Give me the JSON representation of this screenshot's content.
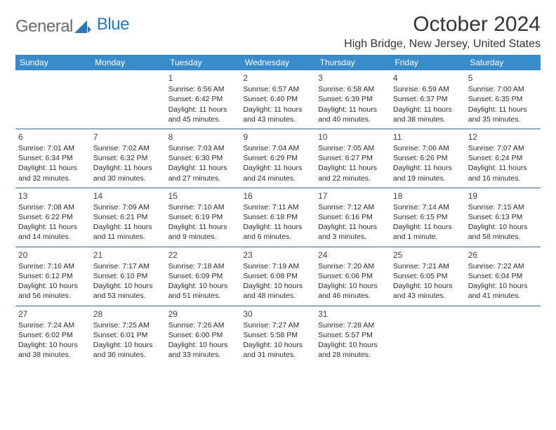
{
  "logo": {
    "text1": "General",
    "text2": "Blue"
  },
  "title": "October 2024",
  "subtitle": "High Bridge, New Jersey, United States",
  "header_bg": "#3a8bc9",
  "row_border": "#3a6a9a",
  "weekdays": [
    "Sunday",
    "Monday",
    "Tuesday",
    "Wednesday",
    "Thursday",
    "Friday",
    "Saturday"
  ],
  "weeks": [
    [
      {
        "day": "",
        "sunrise": "",
        "sunset": "",
        "dl1": "",
        "dl2": ""
      },
      {
        "day": "",
        "sunrise": "",
        "sunset": "",
        "dl1": "",
        "dl2": ""
      },
      {
        "day": "1",
        "sunrise": "Sunrise: 6:56 AM",
        "sunset": "Sunset: 6:42 PM",
        "dl1": "Daylight: 11 hours",
        "dl2": "and 45 minutes."
      },
      {
        "day": "2",
        "sunrise": "Sunrise: 6:57 AM",
        "sunset": "Sunset: 6:40 PM",
        "dl1": "Daylight: 11 hours",
        "dl2": "and 43 minutes."
      },
      {
        "day": "3",
        "sunrise": "Sunrise: 6:58 AM",
        "sunset": "Sunset: 6:39 PM",
        "dl1": "Daylight: 11 hours",
        "dl2": "and 40 minutes."
      },
      {
        "day": "4",
        "sunrise": "Sunrise: 6:59 AM",
        "sunset": "Sunset: 6:37 PM",
        "dl1": "Daylight: 11 hours",
        "dl2": "and 38 minutes."
      },
      {
        "day": "5",
        "sunrise": "Sunrise: 7:00 AM",
        "sunset": "Sunset: 6:35 PM",
        "dl1": "Daylight: 11 hours",
        "dl2": "and 35 minutes."
      }
    ],
    [
      {
        "day": "6",
        "sunrise": "Sunrise: 7:01 AM",
        "sunset": "Sunset: 6:34 PM",
        "dl1": "Daylight: 11 hours",
        "dl2": "and 32 minutes."
      },
      {
        "day": "7",
        "sunrise": "Sunrise: 7:02 AM",
        "sunset": "Sunset: 6:32 PM",
        "dl1": "Daylight: 11 hours",
        "dl2": "and 30 minutes."
      },
      {
        "day": "8",
        "sunrise": "Sunrise: 7:03 AM",
        "sunset": "Sunset: 6:30 PM",
        "dl1": "Daylight: 11 hours",
        "dl2": "and 27 minutes."
      },
      {
        "day": "9",
        "sunrise": "Sunrise: 7:04 AM",
        "sunset": "Sunset: 6:29 PM",
        "dl1": "Daylight: 11 hours",
        "dl2": "and 24 minutes."
      },
      {
        "day": "10",
        "sunrise": "Sunrise: 7:05 AM",
        "sunset": "Sunset: 6:27 PM",
        "dl1": "Daylight: 11 hours",
        "dl2": "and 22 minutes."
      },
      {
        "day": "11",
        "sunrise": "Sunrise: 7:06 AM",
        "sunset": "Sunset: 6:26 PM",
        "dl1": "Daylight: 11 hours",
        "dl2": "and 19 minutes."
      },
      {
        "day": "12",
        "sunrise": "Sunrise: 7:07 AM",
        "sunset": "Sunset: 6:24 PM",
        "dl1": "Daylight: 11 hours",
        "dl2": "and 16 minutes."
      }
    ],
    [
      {
        "day": "13",
        "sunrise": "Sunrise: 7:08 AM",
        "sunset": "Sunset: 6:22 PM",
        "dl1": "Daylight: 11 hours",
        "dl2": "and 14 minutes."
      },
      {
        "day": "14",
        "sunrise": "Sunrise: 7:09 AM",
        "sunset": "Sunset: 6:21 PM",
        "dl1": "Daylight: 11 hours",
        "dl2": "and 11 minutes."
      },
      {
        "day": "15",
        "sunrise": "Sunrise: 7:10 AM",
        "sunset": "Sunset: 6:19 PM",
        "dl1": "Daylight: 11 hours",
        "dl2": "and 9 minutes."
      },
      {
        "day": "16",
        "sunrise": "Sunrise: 7:11 AM",
        "sunset": "Sunset: 6:18 PM",
        "dl1": "Daylight: 11 hours",
        "dl2": "and 6 minutes."
      },
      {
        "day": "17",
        "sunrise": "Sunrise: 7:12 AM",
        "sunset": "Sunset: 6:16 PM",
        "dl1": "Daylight: 11 hours",
        "dl2": "and 3 minutes."
      },
      {
        "day": "18",
        "sunrise": "Sunrise: 7:14 AM",
        "sunset": "Sunset: 6:15 PM",
        "dl1": "Daylight: 11 hours",
        "dl2": "and 1 minute."
      },
      {
        "day": "19",
        "sunrise": "Sunrise: 7:15 AM",
        "sunset": "Sunset: 6:13 PM",
        "dl1": "Daylight: 10 hours",
        "dl2": "and 58 minutes."
      }
    ],
    [
      {
        "day": "20",
        "sunrise": "Sunrise: 7:16 AM",
        "sunset": "Sunset: 6:12 PM",
        "dl1": "Daylight: 10 hours",
        "dl2": "and 56 minutes."
      },
      {
        "day": "21",
        "sunrise": "Sunrise: 7:17 AM",
        "sunset": "Sunset: 6:10 PM",
        "dl1": "Daylight: 10 hours",
        "dl2": "and 53 minutes."
      },
      {
        "day": "22",
        "sunrise": "Sunrise: 7:18 AM",
        "sunset": "Sunset: 6:09 PM",
        "dl1": "Daylight: 10 hours",
        "dl2": "and 51 minutes."
      },
      {
        "day": "23",
        "sunrise": "Sunrise: 7:19 AM",
        "sunset": "Sunset: 6:08 PM",
        "dl1": "Daylight: 10 hours",
        "dl2": "and 48 minutes."
      },
      {
        "day": "24",
        "sunrise": "Sunrise: 7:20 AM",
        "sunset": "Sunset: 6:06 PM",
        "dl1": "Daylight: 10 hours",
        "dl2": "and 46 minutes."
      },
      {
        "day": "25",
        "sunrise": "Sunrise: 7:21 AM",
        "sunset": "Sunset: 6:05 PM",
        "dl1": "Daylight: 10 hours",
        "dl2": "and 43 minutes."
      },
      {
        "day": "26",
        "sunrise": "Sunrise: 7:22 AM",
        "sunset": "Sunset: 6:04 PM",
        "dl1": "Daylight: 10 hours",
        "dl2": "and 41 minutes."
      }
    ],
    [
      {
        "day": "27",
        "sunrise": "Sunrise: 7:24 AM",
        "sunset": "Sunset: 6:02 PM",
        "dl1": "Daylight: 10 hours",
        "dl2": "and 38 minutes."
      },
      {
        "day": "28",
        "sunrise": "Sunrise: 7:25 AM",
        "sunset": "Sunset: 6:01 PM",
        "dl1": "Daylight: 10 hours",
        "dl2": "and 36 minutes."
      },
      {
        "day": "29",
        "sunrise": "Sunrise: 7:26 AM",
        "sunset": "Sunset: 6:00 PM",
        "dl1": "Daylight: 10 hours",
        "dl2": "and 33 minutes."
      },
      {
        "day": "30",
        "sunrise": "Sunrise: 7:27 AM",
        "sunset": "Sunset: 5:58 PM",
        "dl1": "Daylight: 10 hours",
        "dl2": "and 31 minutes."
      },
      {
        "day": "31",
        "sunrise": "Sunrise: 7:28 AM",
        "sunset": "Sunset: 5:57 PM",
        "dl1": "Daylight: 10 hours",
        "dl2": "and 28 minutes."
      },
      {
        "day": "",
        "sunrise": "",
        "sunset": "",
        "dl1": "",
        "dl2": ""
      },
      {
        "day": "",
        "sunrise": "",
        "sunset": "",
        "dl1": "",
        "dl2": ""
      }
    ]
  ]
}
